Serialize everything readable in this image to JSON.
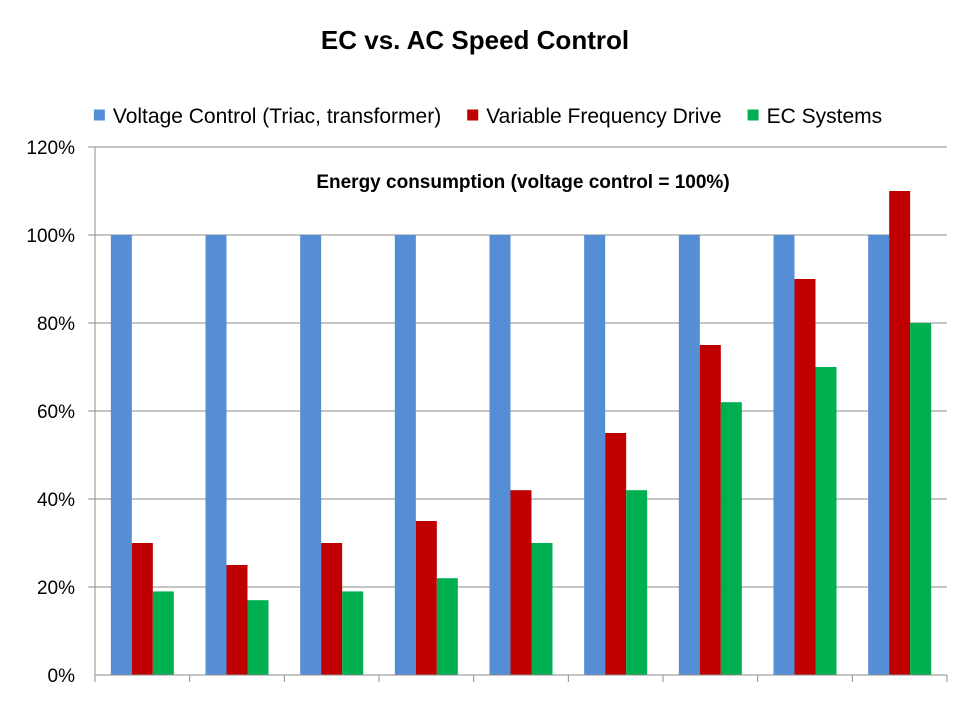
{
  "chart_data": {
    "type": "bar",
    "title": "EC vs. AC Speed Control",
    "subtitle": "Energy consumption (voltage control = 100%)",
    "xlabel": "",
    "ylabel": "",
    "ylim": [
      0,
      120
    ],
    "ytick_step": 20,
    "ytick_labels": [
      "0%",
      "20%",
      "40%",
      "60%",
      "80%",
      "100%",
      "120%"
    ],
    "grid": true,
    "legend_position": "top",
    "categories": [
      "",
      "",
      "",
      "",
      "",
      "",
      "",
      "",
      ""
    ],
    "series": [
      {
        "name": "Voltage Control (Triac, transformer)",
        "color": "#558ED5",
        "values": [
          100,
          100,
          100,
          100,
          100,
          100,
          100,
          100,
          100
        ]
      },
      {
        "name": "Variable Frequency Drive",
        "color": "#C00000",
        "values": [
          30,
          25,
          30,
          35,
          42,
          55,
          75,
          90,
          110
        ]
      },
      {
        "name": "EC Systems",
        "color": "#00B050",
        "values": [
          19,
          17,
          19,
          22,
          30,
          42,
          62,
          70,
          80
        ]
      }
    ]
  }
}
